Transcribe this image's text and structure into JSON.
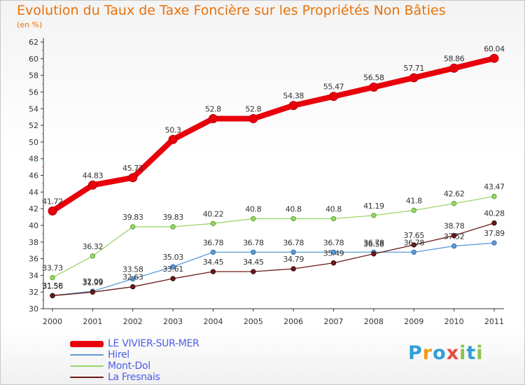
{
  "title": "Evolution du Taux de Taxe Foncière sur les Propriétés Non Bâties",
  "subtitle": "(en %)",
  "logo": {
    "letters": [
      "P",
      "r",
      "o",
      "x",
      "i",
      "t",
      "i"
    ],
    "colors": [
      "#2f9fd8",
      "#f39c12",
      "#2f9fd8",
      "#e74c3c",
      "#8bc34a",
      "#2f9fd8",
      "#8bc34a"
    ]
  },
  "chart_data": {
    "type": "line",
    "title": "Evolution du Taux de Taxe Foncière sur les Propriétés Non Bâties",
    "subtitle": "(en %)",
    "xlabel": "",
    "ylabel": "",
    "x": [
      "2000",
      "2001",
      "2002",
      "2003",
      "2004",
      "2005",
      "2006",
      "2007",
      "2008",
      "2009",
      "2010",
      "2011"
    ],
    "ylim": [
      30,
      62
    ],
    "yticks": [
      "30",
      "32",
      "34",
      "36",
      "38",
      "40",
      "42",
      "44",
      "46",
      "48",
      "50",
      "52",
      "54",
      "56",
      "58",
      "60",
      "62"
    ],
    "grid": false,
    "legend_position": "bottom-left",
    "series": [
      {
        "name": "LE VIVIER-SUR-MER",
        "color": "#e8000b",
        "values": [
          41.72,
          44.83,
          45.72,
          50.3,
          52.8,
          52.8,
          54.38,
          55.47,
          56.58,
          57.71,
          58.86,
          60.04
        ],
        "labels": [
          "41.72",
          "44.83",
          "45.72",
          "50.3",
          "52.8",
          "52.8",
          "54.38",
          "55.47",
          "56.58",
          "57.71",
          "58.86",
          "60.04"
        ]
      },
      {
        "name": "Hirel",
        "color": "#5b9bd5",
        "values": [
          31.58,
          32.09,
          33.58,
          35.03,
          36.78,
          36.78,
          36.78,
          36.78,
          36.78,
          36.78,
          37.52,
          37.89
        ],
        "labels": [
          "31.58",
          "32.09",
          "33.58",
          "35.03",
          "36.78",
          "36.78",
          "36.78",
          "36.78",
          "36.78",
          "36.78",
          "37.52",
          "37.89"
        ]
      },
      {
        "name": "Mont-Dol",
        "color": "#9ad56a",
        "values": [
          33.73,
          36.32,
          39.83,
          39.83,
          40.22,
          40.8,
          40.8,
          40.8,
          41.19,
          41.8,
          42.62,
          43.47
        ],
        "labels": [
          "33.73",
          "36.32",
          "39.83",
          "39.83",
          "40.22",
          "40.8",
          "40.8",
          "40.8",
          "41.19",
          "41.8",
          "42.62",
          "43.47"
        ]
      },
      {
        "name": "La Fresnais",
        "color": "#6b1a1a",
        "values": [
          31.56,
          31.99,
          32.63,
          33.61,
          34.45,
          34.45,
          34.79,
          35.49,
          36.58,
          37.65,
          38.78,
          40.28
        ],
        "labels": [
          "31.56",
          "31.99",
          "32.63",
          "33.61",
          "34.45",
          "34.45",
          "34.79",
          "35.49",
          "36.58",
          "37.65",
          "38.78",
          "40.28"
        ]
      }
    ]
  }
}
